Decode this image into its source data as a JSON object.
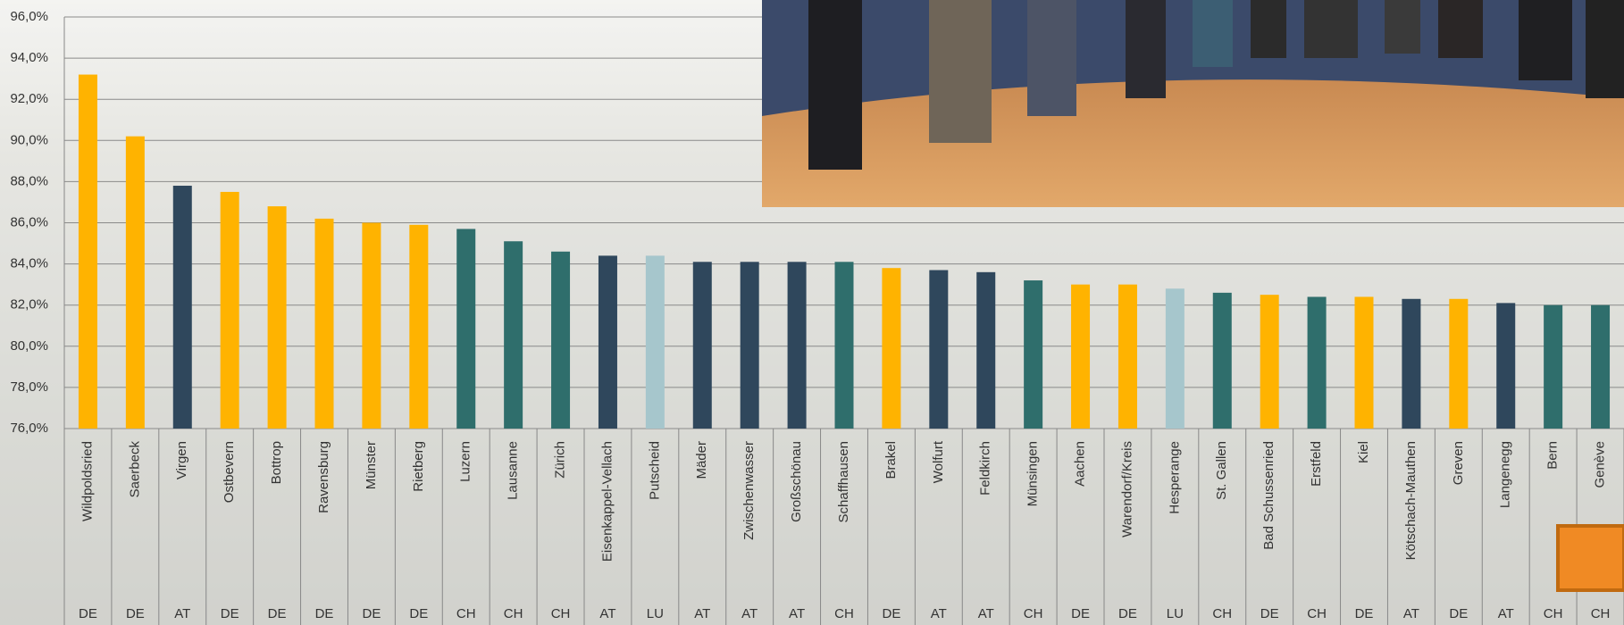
{
  "chart_data": {
    "type": "bar",
    "categories": [
      "Wildpoldsried",
      "Saerbeck",
      "Virgen",
      "Ostbevern",
      "Bottrop",
      "Ravensburg",
      "Münster",
      "Rietberg",
      "Luzern",
      "Lausanne",
      "Zürich",
      "Eisenkappel-Vellach",
      "Putscheid",
      "Mäder",
      "Zwischenwasser",
      "Großschönau",
      "Schaffhausen",
      "Brakel",
      "Wolfurt",
      "Feldkirch",
      "Münsingen",
      "Aachen",
      "Warendorf/Kreis",
      "Hesperange",
      "St. Gallen",
      "Bad Schussenried",
      "Erstfeld",
      "Kiel",
      "Kötschach-Mauthen",
      "Greven",
      "Langenegg",
      "Bern",
      "Genève"
    ],
    "groups": [
      "DE",
      "DE",
      "AT",
      "DE",
      "DE",
      "DE",
      "DE",
      "DE",
      "CH",
      "CH",
      "CH",
      "AT",
      "LU",
      "AT",
      "AT",
      "AT",
      "CH",
      "DE",
      "AT",
      "AT",
      "CH",
      "DE",
      "DE",
      "LU",
      "CH",
      "DE",
      "CH",
      "DE",
      "AT",
      "DE",
      "AT",
      "CH",
      "CH"
    ],
    "values": [
      93.2,
      90.2,
      87.8,
      87.5,
      86.8,
      86.2,
      86.0,
      85.9,
      85.7,
      85.1,
      84.6,
      84.4,
      84.4,
      84.1,
      84.1,
      84.1,
      84.1,
      83.8,
      83.7,
      83.6,
      83.2,
      83.0,
      83.0,
      82.8,
      82.6,
      82.5,
      82.4,
      82.4,
      82.3,
      82.3,
      82.1,
      82.0,
      82.0
    ],
    "group_colors": {
      "DE": "#ffb300",
      "AT": "#2f475c",
      "CH": "#2f6e6c",
      "LU": "#a6c6cc"
    },
    "ylim": [
      76,
      96
    ],
    "yticks": [
      {
        "value": 76,
        "label": "76,0%"
      },
      {
        "value": 78,
        "label": "78,0%"
      },
      {
        "value": 80,
        "label": "80,0%"
      },
      {
        "value": 82,
        "label": "82,0%"
      },
      {
        "value": 84,
        "label": "84,0%"
      },
      {
        "value": 86,
        "label": "86,0%"
      },
      {
        "value": 88,
        "label": "88,0%"
      },
      {
        "value": 90,
        "label": "90,0%"
      },
      {
        "value": 92,
        "label": "92,0%"
      },
      {
        "value": 94,
        "label": "94,0%"
      },
      {
        "value": 96,
        "label": "96,0%"
      }
    ],
    "grid": true
  }
}
